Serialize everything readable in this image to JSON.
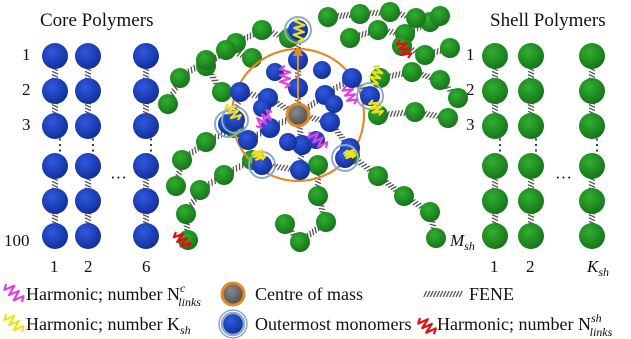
{
  "panels": {
    "core": {
      "title": "Core Polymers",
      "row_labels": [
        "1",
        "2",
        "3",
        "100"
      ],
      "column_labels": [
        "1",
        "2",
        "6"
      ],
      "ellipsis": "···"
    },
    "shell": {
      "title": "Shell Polymers",
      "row_labels": [
        "1",
        "2",
        "3"
      ],
      "last_row_label": {
        "base": "M",
        "sub": "sh"
      },
      "column_labels": [
        "1",
        "2"
      ],
      "last_column_label": {
        "base": "K",
        "sub": "sh"
      },
      "ellipsis": "···"
    }
  },
  "legend": {
    "harmonic_core": {
      "text": "Harmonic; number N",
      "sup": "c",
      "sub": "links",
      "spring_color": "#e040e0"
    },
    "centre_of_mass": {
      "text": "Centre of mass",
      "fill": "#6e6e6e",
      "ring": "#e08a2a"
    },
    "fene": {
      "text": "FENE"
    },
    "harmonic_shell": {
      "text": "Harmonic; number K",
      "sub": "sh",
      "spring_color": "#f0e020"
    },
    "outermost": {
      "text": "Outermost monomers",
      "fill": "#1a3fbf",
      "ring": "#8fa9c8"
    },
    "harmonic_links": {
      "text": "Harmonic; number N",
      "sup": "sh",
      "sub": "links",
      "spring_color": "#e01010"
    }
  },
  "colors": {
    "core_monomer": "#1a3fbf",
    "shell_monomer": "#1f8f1f",
    "bond": "#555555",
    "sphere_outline": "#e08a2a",
    "arrow": "#e08a2a"
  }
}
